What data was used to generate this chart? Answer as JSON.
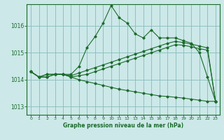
{
  "title": "Graphe pression niveau de la mer (hPa)",
  "bg_color": "#cce8e8",
  "grid_color": "#88bbbb",
  "line_color": "#1a6b2a",
  "ylim": [
    1012.7,
    1016.8
  ],
  "xlim": [
    -0.5,
    23.5
  ],
  "yticks": [
    1013,
    1014,
    1015,
    1016
  ],
  "xticks": [
    0,
    1,
    2,
    3,
    4,
    5,
    6,
    7,
    8,
    9,
    10,
    11,
    12,
    13,
    14,
    15,
    16,
    17,
    18,
    19,
    20,
    21,
    22,
    23
  ],
  "series": [
    [
      1014.3,
      1014.1,
      1014.1,
      1014.2,
      1014.2,
      1014.2,
      1014.5,
      1015.2,
      1015.6,
      1016.1,
      1016.75,
      1016.3,
      1016.1,
      1015.7,
      1015.55,
      1015.85,
      1015.55,
      1015.55,
      1015.55,
      1015.45,
      1015.35,
      1015.0,
      1014.1,
      1013.2
    ],
    [
      1014.3,
      1014.1,
      1014.2,
      1014.2,
      1014.2,
      1014.15,
      1014.25,
      1014.35,
      1014.45,
      1014.55,
      1014.65,
      1014.75,
      1014.85,
      1014.95,
      1015.05,
      1015.15,
      1015.25,
      1015.35,
      1015.42,
      1015.38,
      1015.32,
      1015.25,
      1015.18,
      1013.2
    ],
    [
      1014.3,
      1014.1,
      1014.2,
      1014.2,
      1014.2,
      1014.1,
      1014.15,
      1014.2,
      1014.3,
      1014.4,
      1014.5,
      1014.6,
      1014.7,
      1014.8,
      1014.9,
      1015.0,
      1015.1,
      1015.2,
      1015.3,
      1015.28,
      1015.22,
      1015.15,
      1015.1,
      1013.2
    ],
    [
      1014.3,
      1014.1,
      1014.1,
      1014.2,
      1014.2,
      1014.1,
      1014.0,
      1013.93,
      1013.86,
      1013.79,
      1013.72,
      1013.65,
      1013.6,
      1013.55,
      1013.5,
      1013.45,
      1013.4,
      1013.38,
      1013.35,
      1013.32,
      1013.28,
      1013.24,
      1013.2,
      1013.2
    ]
  ]
}
